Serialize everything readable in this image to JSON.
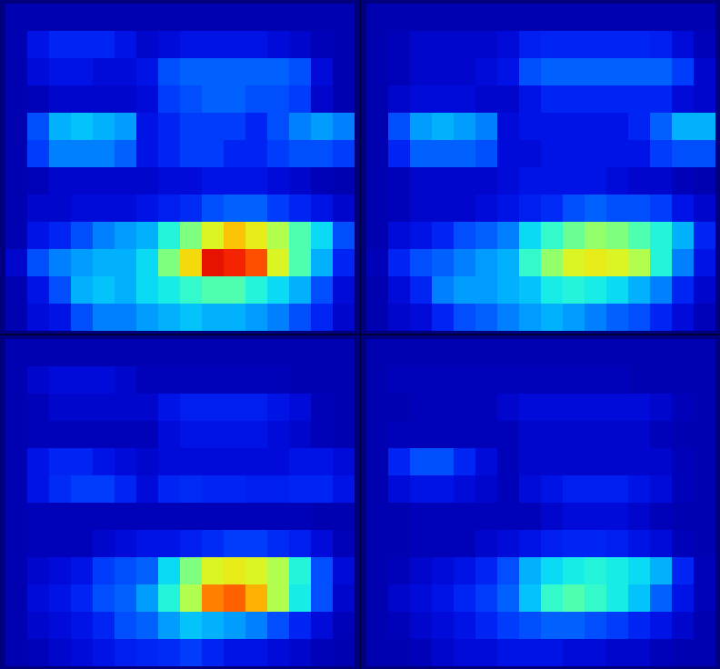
{
  "chart_data": [
    {
      "type": "heatmap",
      "color_range": [
        0,
        1
      ],
      "tick_labels": false,
      "cells": [
        [
          0.05,
          0.05,
          0.05,
          0.05,
          0.05,
          0.05,
          0.05,
          0.05,
          0.05,
          0.05,
          0.05,
          0.05,
          0.05,
          0.05,
          0.05,
          0.05
        ],
        [
          0.05,
          0.12,
          0.15,
          0.15,
          0.15,
          0.12,
          0.08,
          0.1,
          0.12,
          0.12,
          0.12,
          0.12,
          0.1,
          0.08,
          0.06,
          0.05
        ],
        [
          0.05,
          0.1,
          0.12,
          0.12,
          0.1,
          0.1,
          0.12,
          0.2,
          0.22,
          0.22,
          0.22,
          0.22,
          0.22,
          0.2,
          0.1,
          0.05
        ],
        [
          0.05,
          0.06,
          0.08,
          0.08,
          0.08,
          0.08,
          0.1,
          0.18,
          0.2,
          0.22,
          0.22,
          0.2,
          0.2,
          0.18,
          0.08,
          0.05
        ],
        [
          0.05,
          0.2,
          0.3,
          0.32,
          0.3,
          0.28,
          0.12,
          0.15,
          0.18,
          0.18,
          0.18,
          0.15,
          0.2,
          0.25,
          0.28,
          0.25
        ],
        [
          0.05,
          0.18,
          0.25,
          0.25,
          0.25,
          0.22,
          0.12,
          0.15,
          0.18,
          0.18,
          0.15,
          0.15,
          0.18,
          0.2,
          0.2,
          0.18
        ],
        [
          0.05,
          0.06,
          0.08,
          0.08,
          0.08,
          0.08,
          0.08,
          0.1,
          0.1,
          0.12,
          0.12,
          0.12,
          0.1,
          0.08,
          0.06,
          0.05
        ],
        [
          0.05,
          0.08,
          0.08,
          0.1,
          0.1,
          0.1,
          0.12,
          0.14,
          0.16,
          0.2,
          0.22,
          0.22,
          0.18,
          0.15,
          0.12,
          0.08
        ],
        [
          0.05,
          0.12,
          0.15,
          0.2,
          0.25,
          0.28,
          0.3,
          0.4,
          0.5,
          0.6,
          0.68,
          0.62,
          0.55,
          0.45,
          0.35,
          0.2
        ],
        [
          0.08,
          0.2,
          0.25,
          0.28,
          0.3,
          0.3,
          0.35,
          0.5,
          0.65,
          0.88,
          0.85,
          0.8,
          0.6,
          0.45,
          0.3,
          0.15
        ],
        [
          0.05,
          0.12,
          0.2,
          0.3,
          0.32,
          0.3,
          0.35,
          0.38,
          0.42,
          0.45,
          0.45,
          0.4,
          0.35,
          0.3,
          0.2,
          0.1
        ],
        [
          0.05,
          0.1,
          0.12,
          0.2,
          0.25,
          0.25,
          0.28,
          0.3,
          0.32,
          0.3,
          0.3,
          0.28,
          0.25,
          0.2,
          0.15,
          0.08
        ]
      ]
    },
    {
      "type": "heatmap",
      "color_range": [
        0,
        1
      ],
      "tick_labels": false,
      "cells": [
        [
          0.05,
          0.05,
          0.05,
          0.05,
          0.05,
          0.05,
          0.05,
          0.05,
          0.05,
          0.05,
          0.05,
          0.05,
          0.05,
          0.05,
          0.05,
          0.05
        ],
        [
          0.05,
          0.06,
          0.08,
          0.08,
          0.08,
          0.08,
          0.1,
          0.14,
          0.15,
          0.15,
          0.15,
          0.15,
          0.15,
          0.14,
          0.1,
          0.06
        ],
        [
          0.05,
          0.06,
          0.08,
          0.08,
          0.08,
          0.1,
          0.12,
          0.2,
          0.22,
          0.22,
          0.22,
          0.22,
          0.22,
          0.22,
          0.18,
          0.08
        ],
        [
          0.05,
          0.08,
          0.1,
          0.1,
          0.1,
          0.08,
          0.08,
          0.12,
          0.15,
          0.15,
          0.15,
          0.15,
          0.15,
          0.15,
          0.1,
          0.08
        ],
        [
          0.05,
          0.2,
          0.28,
          0.3,
          0.28,
          0.25,
          0.1,
          0.12,
          0.12,
          0.12,
          0.12,
          0.12,
          0.15,
          0.22,
          0.3,
          0.3
        ],
        [
          0.05,
          0.15,
          0.22,
          0.22,
          0.22,
          0.2,
          0.1,
          0.1,
          0.12,
          0.12,
          0.12,
          0.12,
          0.12,
          0.18,
          0.2,
          0.2
        ],
        [
          0.05,
          0.06,
          0.08,
          0.08,
          0.08,
          0.08,
          0.1,
          0.12,
          0.12,
          0.12,
          0.12,
          0.1,
          0.08,
          0.08,
          0.06,
          0.05
        ],
        [
          0.05,
          0.06,
          0.08,
          0.08,
          0.08,
          0.1,
          0.12,
          0.14,
          0.16,
          0.2,
          0.22,
          0.2,
          0.2,
          0.18,
          0.12,
          0.08
        ],
        [
          0.05,
          0.1,
          0.12,
          0.15,
          0.2,
          0.22,
          0.25,
          0.35,
          0.42,
          0.48,
          0.52,
          0.5,
          0.45,
          0.4,
          0.3,
          0.15
        ],
        [
          0.06,
          0.15,
          0.2,
          0.22,
          0.25,
          0.28,
          0.3,
          0.42,
          0.52,
          0.6,
          0.62,
          0.6,
          0.55,
          0.4,
          0.25,
          0.12
        ],
        [
          0.05,
          0.1,
          0.15,
          0.25,
          0.28,
          0.28,
          0.3,
          0.32,
          0.38,
          0.4,
          0.38,
          0.35,
          0.3,
          0.25,
          0.15,
          0.08
        ],
        [
          0.05,
          0.08,
          0.1,
          0.15,
          0.2,
          0.22,
          0.25,
          0.28,
          0.3,
          0.28,
          0.25,
          0.22,
          0.2,
          0.15,
          0.1,
          0.06
        ]
      ]
    },
    {
      "type": "heatmap",
      "color_range": [
        0,
        1
      ],
      "tick_labels": false,
      "cells": [
        [
          0.05,
          0.05,
          0.05,
          0.05,
          0.05,
          0.05,
          0.05,
          0.05,
          0.05,
          0.05,
          0.05,
          0.05,
          0.05,
          0.05,
          0.05,
          0.05
        ],
        [
          0.05,
          0.08,
          0.1,
          0.1,
          0.1,
          0.08,
          0.06,
          0.06,
          0.06,
          0.06,
          0.06,
          0.06,
          0.06,
          0.05,
          0.05,
          0.05
        ],
        [
          0.05,
          0.06,
          0.08,
          0.08,
          0.08,
          0.08,
          0.08,
          0.12,
          0.14,
          0.14,
          0.14,
          0.14,
          0.12,
          0.1,
          0.06,
          0.05
        ],
        [
          0.05,
          0.06,
          0.06,
          0.06,
          0.06,
          0.06,
          0.06,
          0.1,
          0.12,
          0.12,
          0.12,
          0.12,
          0.1,
          0.08,
          0.06,
          0.05
        ],
        [
          0.05,
          0.12,
          0.15,
          0.15,
          0.12,
          0.1,
          0.08,
          0.1,
          0.1,
          0.1,
          0.1,
          0.1,
          0.1,
          0.12,
          0.12,
          0.1
        ],
        [
          0.05,
          0.12,
          0.16,
          0.18,
          0.18,
          0.15,
          0.1,
          0.15,
          0.16,
          0.15,
          0.15,
          0.14,
          0.14,
          0.15,
          0.15,
          0.12
        ],
        [
          0.05,
          0.06,
          0.06,
          0.06,
          0.06,
          0.06,
          0.06,
          0.06,
          0.06,
          0.06,
          0.06,
          0.06,
          0.06,
          0.06,
          0.05,
          0.05
        ],
        [
          0.05,
          0.06,
          0.06,
          0.06,
          0.08,
          0.1,
          0.12,
          0.12,
          0.14,
          0.16,
          0.18,
          0.18,
          0.16,
          0.14,
          0.1,
          0.06
        ],
        [
          0.05,
          0.08,
          0.1,
          0.12,
          0.18,
          0.2,
          0.22,
          0.35,
          0.5,
          0.6,
          0.62,
          0.6,
          0.55,
          0.4,
          0.2,
          0.1
        ],
        [
          0.05,
          0.1,
          0.12,
          0.15,
          0.2,
          0.22,
          0.28,
          0.4,
          0.55,
          0.75,
          0.78,
          0.7,
          0.55,
          0.38,
          0.2,
          0.08
        ],
        [
          0.05,
          0.08,
          0.1,
          0.12,
          0.15,
          0.2,
          0.22,
          0.28,
          0.32,
          0.3,
          0.28,
          0.25,
          0.2,
          0.15,
          0.1,
          0.06
        ],
        [
          0.05,
          0.06,
          0.08,
          0.1,
          0.12,
          0.14,
          0.15,
          0.16,
          0.18,
          0.15,
          0.12,
          0.12,
          0.1,
          0.08,
          0.06,
          0.05
        ]
      ]
    },
    {
      "type": "heatmap",
      "color_range": [
        0,
        1
      ],
      "tick_labels": false,
      "cells": [
        [
          0.05,
          0.05,
          0.05,
          0.05,
          0.05,
          0.05,
          0.05,
          0.05,
          0.05,
          0.05,
          0.05,
          0.05,
          0.05,
          0.05,
          0.05,
          0.05
        ],
        [
          0.05,
          0.06,
          0.06,
          0.06,
          0.06,
          0.06,
          0.06,
          0.06,
          0.06,
          0.06,
          0.06,
          0.06,
          0.05,
          0.05,
          0.05,
          0.05
        ],
        [
          0.05,
          0.05,
          0.06,
          0.06,
          0.06,
          0.06,
          0.08,
          0.1,
          0.1,
          0.1,
          0.1,
          0.1,
          0.1,
          0.08,
          0.06,
          0.05
        ],
        [
          0.05,
          0.06,
          0.06,
          0.06,
          0.06,
          0.06,
          0.06,
          0.08,
          0.08,
          0.08,
          0.08,
          0.08,
          0.08,
          0.06,
          0.05,
          0.05
        ],
        [
          0.05,
          0.15,
          0.2,
          0.2,
          0.15,
          0.1,
          0.06,
          0.08,
          0.08,
          0.08,
          0.08,
          0.08,
          0.08,
          0.08,
          0.06,
          0.05
        ],
        [
          0.05,
          0.1,
          0.12,
          0.12,
          0.1,
          0.08,
          0.06,
          0.1,
          0.12,
          0.14,
          0.14,
          0.14,
          0.12,
          0.1,
          0.06,
          0.05
        ],
        [
          0.05,
          0.05,
          0.06,
          0.06,
          0.06,
          0.06,
          0.06,
          0.06,
          0.08,
          0.1,
          0.1,
          0.1,
          0.08,
          0.06,
          0.05,
          0.05
        ],
        [
          0.05,
          0.05,
          0.06,
          0.06,
          0.06,
          0.08,
          0.1,
          0.12,
          0.14,
          0.15,
          0.15,
          0.14,
          0.12,
          0.1,
          0.06,
          0.05
        ],
        [
          0.05,
          0.06,
          0.08,
          0.1,
          0.12,
          0.15,
          0.2,
          0.3,
          0.35,
          0.38,
          0.4,
          0.38,
          0.35,
          0.3,
          0.15,
          0.06
        ],
        [
          0.05,
          0.08,
          0.1,
          0.12,
          0.15,
          0.18,
          0.22,
          0.32,
          0.42,
          0.45,
          0.42,
          0.38,
          0.32,
          0.22,
          0.12,
          0.06
        ],
        [
          0.05,
          0.06,
          0.08,
          0.1,
          0.12,
          0.15,
          0.18,
          0.2,
          0.22,
          0.22,
          0.2,
          0.18,
          0.15,
          0.12,
          0.08,
          0.05
        ],
        [
          0.05,
          0.05,
          0.06,
          0.08,
          0.1,
          0.1,
          0.12,
          0.12,
          0.12,
          0.1,
          0.1,
          0.08,
          0.08,
          0.06,
          0.05,
          0.05
        ]
      ]
    }
  ]
}
